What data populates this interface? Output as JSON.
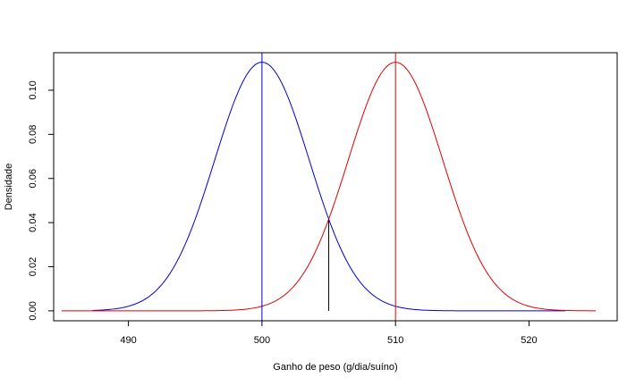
{
  "chart_data": {
    "type": "line",
    "title": "",
    "xlabel": "Ganho de peso (g/dia/suíno)",
    "ylabel": "Densidade",
    "xlim": [
      484.4,
      526.6
    ],
    "ylim": [
      -0.0045,
      0.117
    ],
    "x_ticks": [
      490,
      500,
      510,
      520
    ],
    "x_tick_labels": [
      "490",
      "500",
      "510",
      "520"
    ],
    "y_ticks": [
      0.0,
      0.02,
      0.04,
      0.06,
      0.08,
      0.1
    ],
    "y_tick_labels": [
      "0.00",
      "0.02",
      "0.04",
      "0.06",
      "0.08",
      "0.10"
    ],
    "grid": false,
    "series": [
      {
        "color": "#0000cd",
        "mean": 500,
        "sd": 3.54,
        "x_range": [
          487.3,
          522.7
        ]
      },
      {
        "color": "#e00000",
        "mean": 510,
        "sd": 3.54,
        "x_range": [
          485,
          525
        ]
      }
    ],
    "vlines": [
      {
        "x": 500,
        "y0": -0.0045,
        "y1": 0.117,
        "color": "#0000cd"
      },
      {
        "x": 510,
        "y0": -0.0045,
        "y1": 0.117,
        "color": "#e00000"
      },
      {
        "x": 505,
        "y0": 0.0,
        "y1": 0.0416,
        "color": "#000000"
      }
    ]
  }
}
